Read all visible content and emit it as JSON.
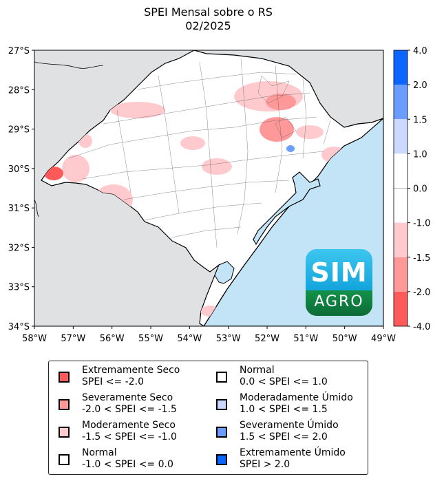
{
  "title": {
    "line1": "SPEI Mensal sobre o RS",
    "line2": "02/2025"
  },
  "map": {
    "region": "Rio Grande do Sul",
    "lat_labels": [
      "27°S",
      "28°S",
      "29°S",
      "30°S",
      "31°S",
      "32°S",
      "33°S",
      "34°S"
    ],
    "lon_labels": [
      "58°W",
      "57°W",
      "56°W",
      "55°W",
      "54°W",
      "53°W",
      "52°W",
      "51°W",
      "50°W",
      "49°W"
    ],
    "extent": {
      "lon": [
        -58,
        -49
      ],
      "lat": [
        -34,
        -27
      ]
    },
    "colors": {
      "land_outside": "#e0e1e3",
      "ocean": "#c3e4f7",
      "state_fill": "#ffffff",
      "extremely_dry": "#ff5a5a",
      "severely_dry": "#ff9999",
      "moderately_dry": "#ffcacd",
      "moderately_wet": "#cbd8ff",
      "severely_wet": "#6a9dff",
      "extremely_wet": "#0a66ff"
    }
  },
  "colorbar": {
    "tick_labels": [
      "4.0",
      "2.0",
      "1.5",
      "1.0",
      "0.0",
      "-1.0",
      "-1.5",
      "-2.0",
      "-4.0"
    ],
    "bands": [
      {
        "from": "2.0",
        "to": "4.0",
        "color": "#0a66ff"
      },
      {
        "from": "1.5",
        "to": "2.0",
        "color": "#6a9dff"
      },
      {
        "from": "1.0",
        "to": "1.5",
        "color": "#cbd8ff"
      },
      {
        "from": "-1.0",
        "to": "1.0",
        "color": "#ffffff"
      },
      {
        "from": "-1.5",
        "to": "-1.0",
        "color": "#ffcacd"
      },
      {
        "from": "-2.0",
        "to": "-1.5",
        "color": "#ff9999"
      },
      {
        "from": "-4.0",
        "to": "-2.0",
        "color": "#ff5a5a"
      }
    ]
  },
  "legend": {
    "items": [
      {
        "name": "Extremamente Seco",
        "range": "SPEI <= -2.0",
        "color": "#ff5a5a"
      },
      {
        "name": "Severamente Seco",
        "range": "-2.0 < SPEI <= -1.5",
        "color": "#ff9999"
      },
      {
        "name": "Moderamente Seco",
        "range": "-1.5 < SPEI <= -1.0",
        "color": "#ffcacd"
      },
      {
        "name": "Normal",
        "range": "-1.0 < SPEI <= 0.0",
        "color": "#ffffff"
      },
      {
        "name": "Normal",
        "range": "0.0 < SPEI <= 1.0",
        "color": "#ffffff"
      },
      {
        "name": "Moderadamente Úmido",
        "range": "1.0 < SPEI <= 1.5",
        "color": "#cbd8ff"
      },
      {
        "name": "Severamente Úmido",
        "range": "1.5 < SPEI <= 2.0",
        "color": "#6a9dff"
      },
      {
        "name": "Extremamente Úmido",
        "range": "SPEI > 2.0",
        "color": "#0a66ff"
      }
    ]
  },
  "logo": {
    "top_text": "SIM",
    "bottom_text": "AGRO"
  }
}
